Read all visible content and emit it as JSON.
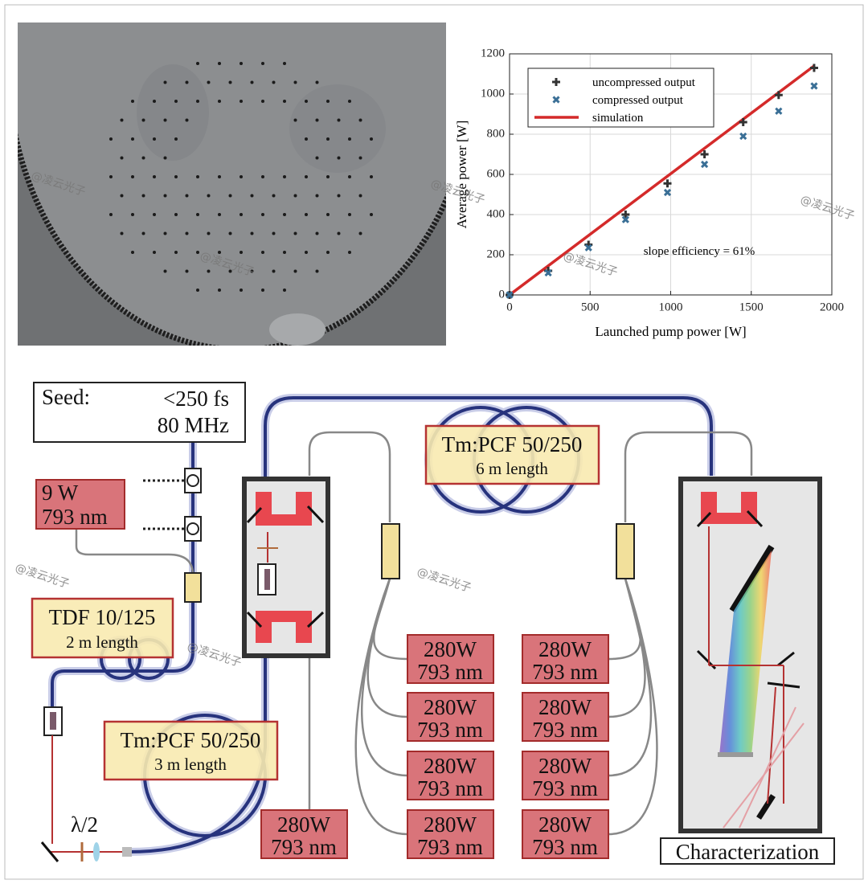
{
  "chart_data": {
    "type": "scatter",
    "xlabel": "Launched pump power [W]",
    "ylabel": "Average power [W]",
    "xlim": [
      0,
      2000
    ],
    "xticks": [
      0,
      500,
      1000,
      1500,
      2000
    ],
    "ylim": [
      0,
      1200
    ],
    "yticks": [
      0,
      200,
      400,
      600,
      800,
      1000,
      1200
    ],
    "grid": true,
    "legend": "upper left",
    "annotation": "slope efficiency = 61%",
    "series": [
      {
        "name": "uncompressed output",
        "color": "#333333",
        "marker": "plus",
        "x": [
          0,
          240,
          490,
          720,
          980,
          1210,
          1450,
          1670,
          1890
        ],
        "values": [
          0,
          120,
          250,
          400,
          555,
          700,
          860,
          995,
          1130
        ]
      },
      {
        "name": "compressed output",
        "color": "#3a6f96",
        "marker": "cross",
        "x": [
          0,
          240,
          490,
          720,
          980,
          1210,
          1450,
          1670,
          1890
        ],
        "values": [
          0,
          110,
          235,
          375,
          510,
          650,
          790,
          915,
          1040
        ]
      },
      {
        "name": "simulation",
        "color": "#d42a2a",
        "marker": "line",
        "x": [
          0,
          1890
        ],
        "values": [
          0,
          1140
        ]
      }
    ]
  },
  "diagram": {
    "seed": {
      "label": "Seed:",
      "pulse": "<250 fs",
      "rate": "80 MHz"
    },
    "pump_9w": [
      "9 W",
      "793 nm"
    ],
    "tdf": [
      "TDF 10/125",
      "2 m length"
    ],
    "pcf_3m": [
      "Tm:PCF 50/250",
      "3 m length"
    ],
    "pcf_6m": [
      "Tm:PCF 50/250",
      "6 m length"
    ],
    "pumps": [
      [
        "280W",
        "793 nm"
      ],
      [
        "280W",
        "793 nm"
      ],
      [
        "280W",
        "793 nm"
      ],
      [
        "280W",
        "793 nm"
      ],
      [
        "280W",
        "793 nm"
      ],
      [
        "280W",
        "793 nm"
      ],
      [
        "280W",
        "793 nm"
      ],
      [
        "280W",
        "793 nm"
      ],
      [
        "280W",
        "793 nm"
      ]
    ],
    "waveplate": "λ/2",
    "characterization": "Characterization"
  },
  "watermarks": [
    "@凌云光子",
    "@凌云光子",
    "@凌云光子",
    "@凌云光子",
    "@凌云光子",
    "@凌云光子",
    "@凌云光子",
    "@凌云光子"
  ]
}
